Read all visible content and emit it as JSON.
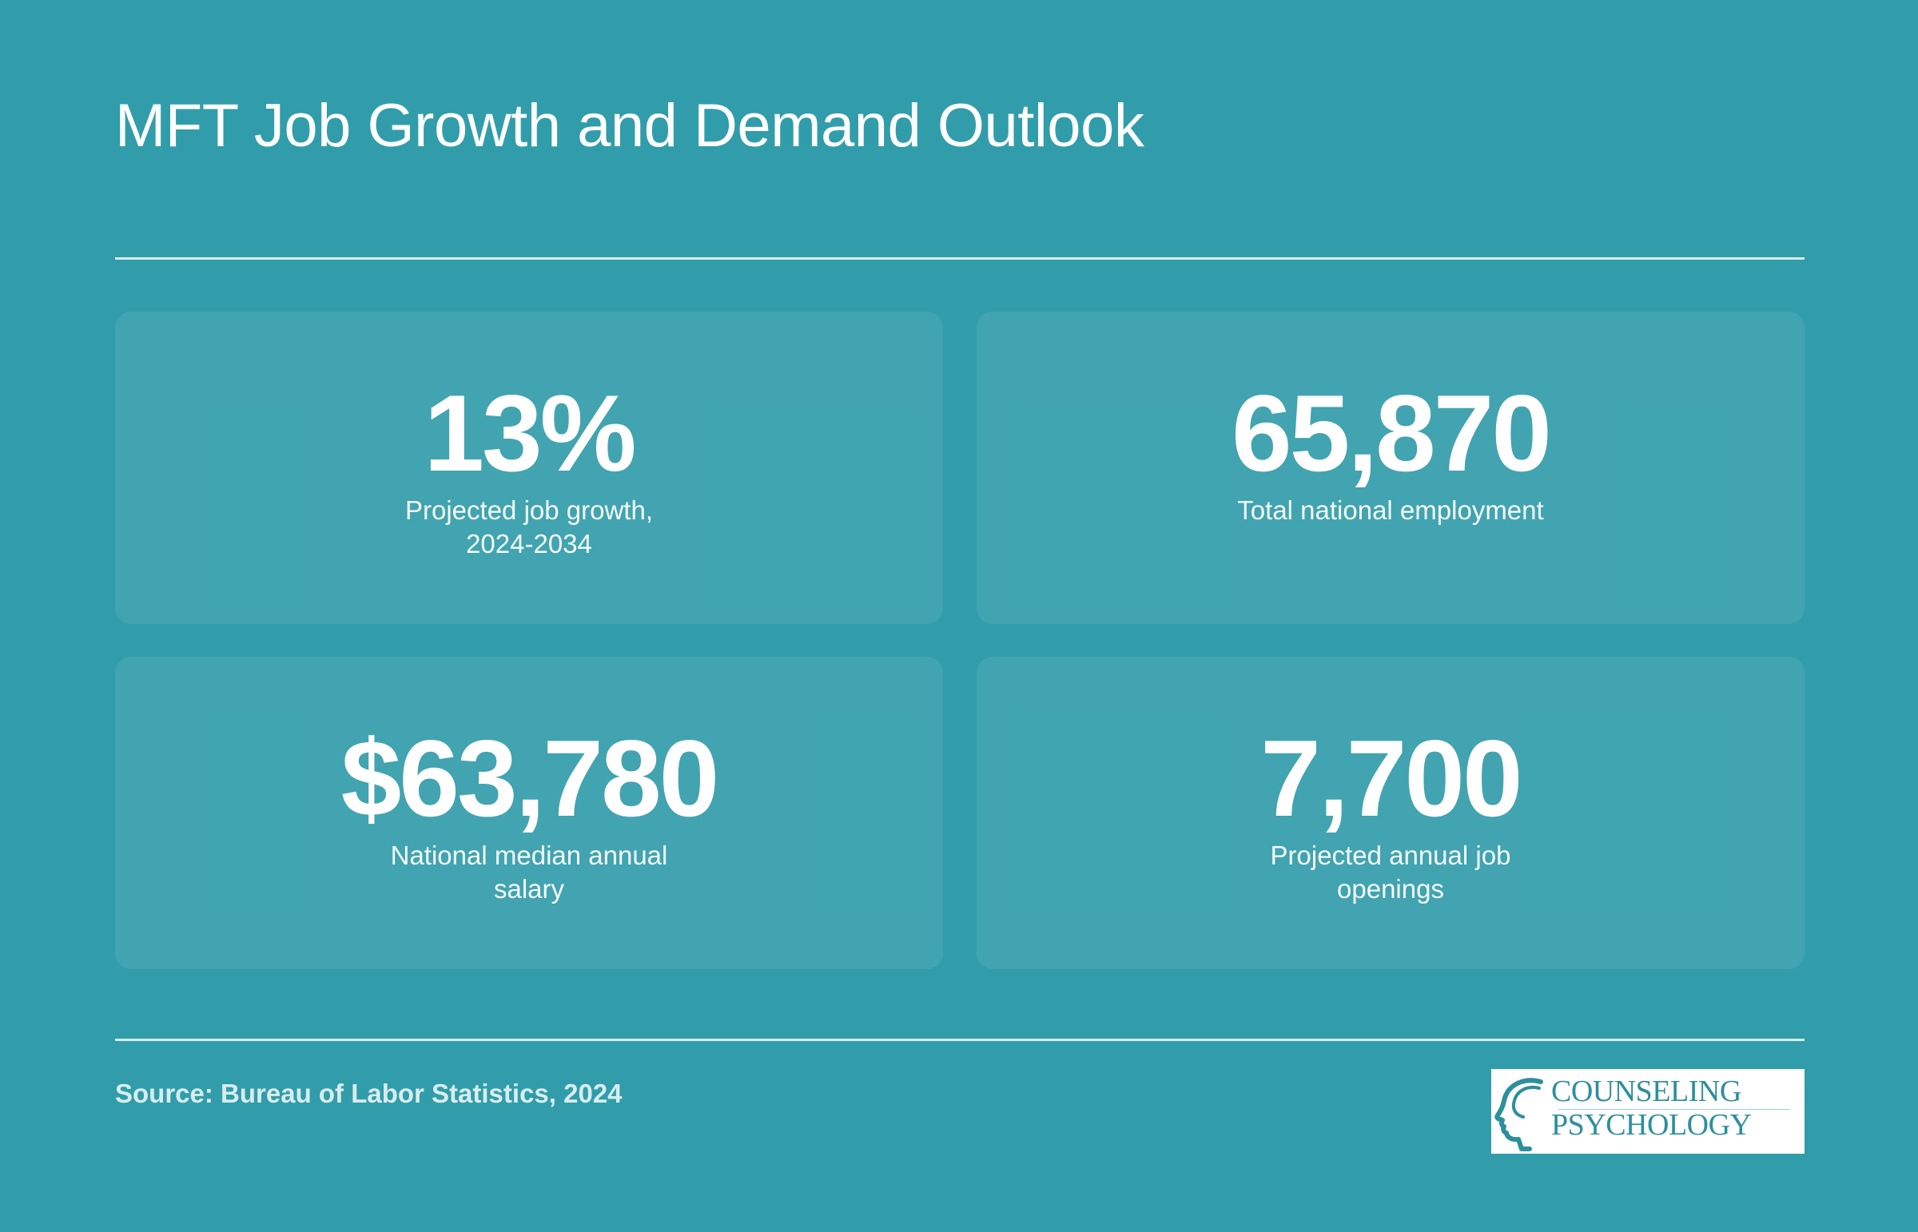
{
  "page": {
    "title": "MFT Job Growth and Demand Outlook",
    "source": "Source: Bureau of Labor Statistics, 2024"
  },
  "stats": [
    {
      "value": "13%",
      "label": "Projected job growth, 2024-2034"
    },
    {
      "value": "65,870",
      "label": "Total national employment"
    },
    {
      "value": "$63,780",
      "label": "National median annual salary"
    },
    {
      "value": "7,700",
      "label": "Projected annual job openings"
    }
  ],
  "logo": {
    "line1": "COUNSELING",
    "line2": "PSYCHOLOGY",
    "icon": "head-profile-icon"
  },
  "colors": {
    "background": "#319daa",
    "card": "#42a6b3",
    "logo_teal": "#2c8f9c"
  }
}
